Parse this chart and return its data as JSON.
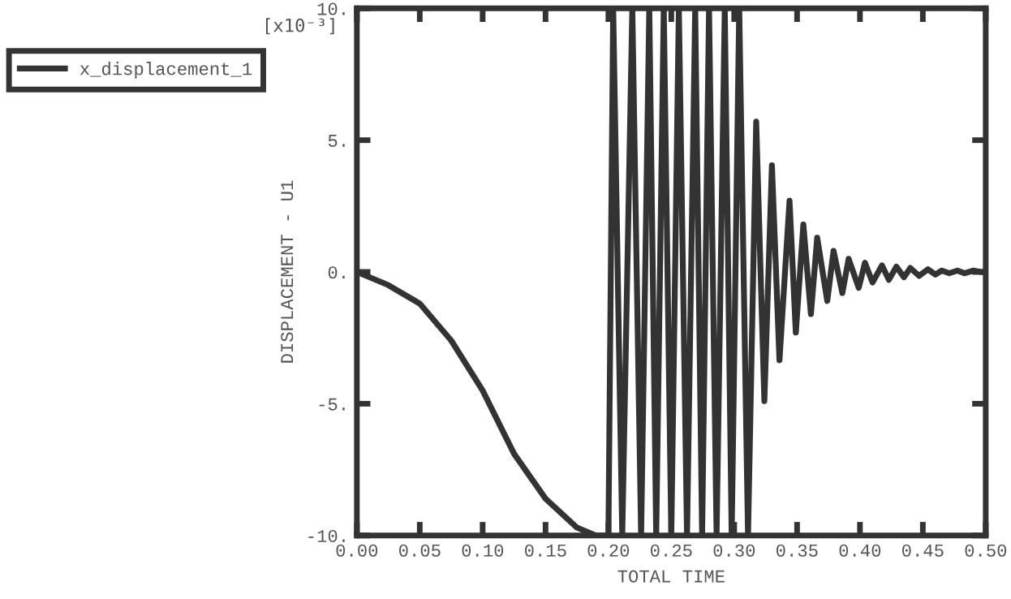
{
  "chart_data": {
    "type": "line",
    "xlabel": "TOTAL TIME",
    "ylabel": "DISPLACEMENT - U1",
    "annotations": [
      "[x10⁻³]"
    ],
    "xlim": [
      0,
      0.5
    ],
    "ylim": [
      -10,
      10
    ],
    "xticks": [
      {
        "value": 0,
        "label": "0.00"
      },
      {
        "value": 0.05,
        "label": "0.05"
      },
      {
        "value": 0.1,
        "label": "0.10"
      },
      {
        "value": 0.15,
        "label": "0.15"
      },
      {
        "value": 0.2,
        "label": "0.20"
      },
      {
        "value": 0.25,
        "label": "0.25"
      },
      {
        "value": 0.3,
        "label": "0.30"
      },
      {
        "value": 0.35,
        "label": "0.35"
      },
      {
        "value": 0.4,
        "label": "0.40"
      },
      {
        "value": 0.45,
        "label": "0.45"
      },
      {
        "value": 0.5,
        "label": "0.50"
      }
    ],
    "yticks": [
      {
        "value": -10,
        "label": "-10."
      },
      {
        "value": -5,
        "label": "-5."
      },
      {
        "value": 0,
        "label": "0."
      },
      {
        "value": 5,
        "label": "5."
      },
      {
        "value": 10,
        "label": "10."
      }
    ],
    "grid": false,
    "legend": "top left",
    "marker": "none",
    "line_style": "solid",
    "series": [
      {
        "name": "x_displacement_1",
        "color": "#333333",
        "x": [
          0,
          0.025,
          0.05,
          0.075,
          0.1,
          0.125,
          0.15,
          0.175,
          0.19,
          0.2,
          0.2038,
          0.211,
          0.219,
          0.226,
          0.2325,
          0.238,
          0.244,
          0.25,
          0.256,
          0.2625,
          0.269,
          0.2745,
          0.28,
          0.286,
          0.2925,
          0.298,
          0.304,
          0.311,
          0.3175,
          0.324,
          0.33,
          0.336,
          0.344,
          0.349,
          0.355,
          0.361,
          0.366,
          0.374,
          0.379,
          0.386,
          0.391,
          0.399,
          0.404,
          0.41,
          0.4175,
          0.423,
          0.429,
          0.435,
          0.44,
          0.447,
          0.454,
          0.46,
          0.465,
          0.471,
          0.4775,
          0.483,
          0.49,
          0.496,
          0.5
        ],
        "values": [
          0,
          -0.5,
          -1.2,
          -2.6,
          -4.5,
          -6.9,
          -8.6,
          -9.7,
          -10,
          -10,
          10,
          -10,
          10,
          -10,
          10,
          -10,
          10,
          -10,
          10,
          -10,
          10,
          -10,
          10,
          -10,
          10,
          -10,
          10,
          -10,
          5.7,
          -4.9,
          4.05,
          -3.35,
          2.7,
          -2.3,
          1.8,
          -1.6,
          1.3,
          -1.1,
          0.8,
          -0.8,
          0.5,
          -0.6,
          0.35,
          -0.4,
          0.25,
          -0.3,
          0.2,
          -0.2,
          0.15,
          -0.15,
          0.1,
          -0.1,
          0.05,
          -0.05,
          0.05,
          -0.05,
          0.05,
          0,
          0
        ]
      }
    ]
  }
}
